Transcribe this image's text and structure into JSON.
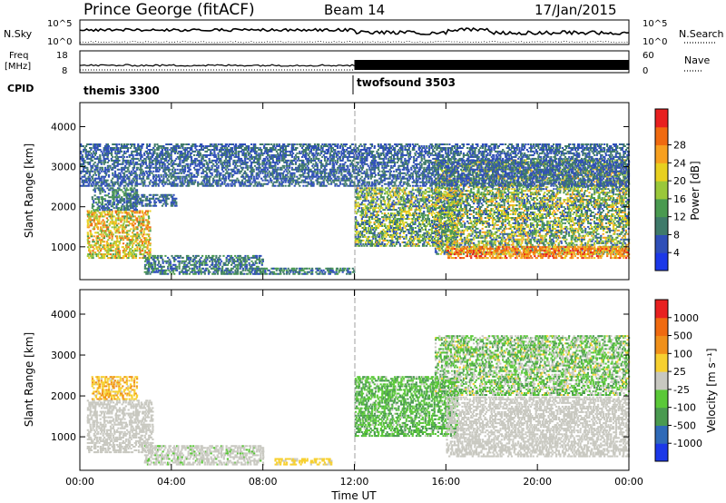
{
  "header": {
    "station": "Prince George (fitACF)",
    "beam": "Beam 14",
    "date": "17/Jan/2015"
  },
  "summary": {
    "nsky_label": "N.Sky",
    "nsky_ticks": [
      "10^5",
      "10^0"
    ],
    "nsearch_label": "N.Search",
    "nsearch_ticks": [
      "10^5",
      "10^0"
    ],
    "freq_label_1": "Freq",
    "freq_label_2": "[MHz]",
    "freq_ticks": [
      "18",
      "8"
    ],
    "nave_label": "Nave",
    "nave_ticks": [
      "60",
      "0"
    ],
    "cpid_label": "CPID",
    "cpid_segments": [
      {
        "name": "themis 3300",
        "start_hour": 0
      },
      {
        "name": "twofsound 3503",
        "start_hour": 12
      }
    ]
  },
  "chart_data": [
    {
      "type": "heatmap",
      "parameter": "Power",
      "ylabel": "Slant Range [km]",
      "xlabel": "Time UT",
      "ylim": [
        180,
        4600
      ],
      "yticks": [
        "1000",
        "2000",
        "3000",
        "4000"
      ],
      "xticks": [
        "00:00",
        "04:00",
        "08:00",
        "12:00",
        "16:00",
        "20:00",
        "00:00"
      ],
      "colorbar_label": "Power [dB]",
      "colorbar_ticks": [
        "4",
        "8",
        "12",
        "16",
        "20",
        "24",
        "28"
      ],
      "colorbar_colors": [
        "#1c38e8",
        "#2f4fb8",
        "#3f7a6a",
        "#4a9a50",
        "#9ac83a",
        "#e8d020",
        "#f7a020",
        "#f06a10",
        "#e82020"
      ],
      "colorbar_range": [
        0,
        32
      ],
      "echo_regions": [
        {
          "t0": 0.3,
          "t1": 3.1,
          "r0": 700,
          "r1": 1900,
          "values": [
            12,
            28
          ]
        },
        {
          "t0": 0.5,
          "t1": 2.5,
          "r0": 1900,
          "r1": 2500,
          "values": [
            4,
            14
          ]
        },
        {
          "t0": 2.0,
          "t1": 4.2,
          "r0": 2000,
          "r1": 2300,
          "values": [
            4,
            10
          ]
        },
        {
          "t0": 2.8,
          "t1": 8.0,
          "r0": 300,
          "r1": 800,
          "values": [
            4,
            14
          ]
        },
        {
          "t0": 7.5,
          "t1": 12.0,
          "r0": 300,
          "r1": 500,
          "values": [
            4,
            14
          ]
        },
        {
          "t0": 12.0,
          "t1": 16.5,
          "r0": 1000,
          "r1": 2500,
          "values": [
            4,
            22
          ]
        },
        {
          "t0": 15.5,
          "t1": 24.0,
          "r0": 800,
          "r1": 3200,
          "values": [
            4,
            24
          ]
        },
        {
          "t0": 16.0,
          "t1": 24.0,
          "r0": 700,
          "r1": 1000,
          "values": [
            20,
            30
          ]
        },
        {
          "t0": 0.0,
          "t1": 24.0,
          "r0": 2500,
          "r1": 3600,
          "values": [
            4,
            10
          ]
        }
      ]
    },
    {
      "type": "heatmap",
      "parameter": "Velocity",
      "ylabel": "Slant Range [km]",
      "xlabel": "Time UT",
      "ylim": [
        180,
        4600
      ],
      "yticks": [
        "1000",
        "2000",
        "3000",
        "4000"
      ],
      "xticks": [
        "00:00",
        "04:00",
        "08:00",
        "12:00",
        "16:00",
        "20:00",
        "00:00"
      ],
      "colorbar_label": "Velocity [m s⁻¹]",
      "colorbar_ticks": [
        "1000",
        "500",
        "100",
        "25",
        "-25",
        "-100",
        "-500",
        "-1000"
      ],
      "colorbar_colors": [
        "#1c38e8",
        "#2f6ab8",
        "#4a9a50",
        "#5ac838",
        "#c8c8c0",
        "#f7d030",
        "#f0901a",
        "#f06a10",
        "#e82020"
      ],
      "colorbar_range": [
        -1200,
        1200
      ],
      "echo_regions": [
        {
          "t0": 0.3,
          "t1": 3.2,
          "r0": 600,
          "r1": 1900,
          "values": [
            -30,
            20
          ]
        },
        {
          "t0": 0.5,
          "t1": 2.5,
          "r0": 1900,
          "r1": 2500,
          "values": [
            100,
            600
          ]
        },
        {
          "t0": 2.8,
          "t1": 8.0,
          "r0": 300,
          "r1": 800,
          "values": [
            -150,
            -30
          ]
        },
        {
          "t0": 8.5,
          "t1": 11.0,
          "r0": 300,
          "r1": 500,
          "values": [
            100,
            300
          ]
        },
        {
          "t0": 12.0,
          "t1": 16.5,
          "r0": 1000,
          "r1": 2500,
          "values": [
            -600,
            -100
          ]
        },
        {
          "t0": 15.5,
          "t1": 24.0,
          "r0": 2000,
          "r1": 3500,
          "values": [
            -600,
            200
          ]
        },
        {
          "t0": 16.0,
          "t1": 24.0,
          "r0": 500,
          "r1": 2000,
          "values": [
            -25,
            25
          ]
        }
      ]
    }
  ]
}
